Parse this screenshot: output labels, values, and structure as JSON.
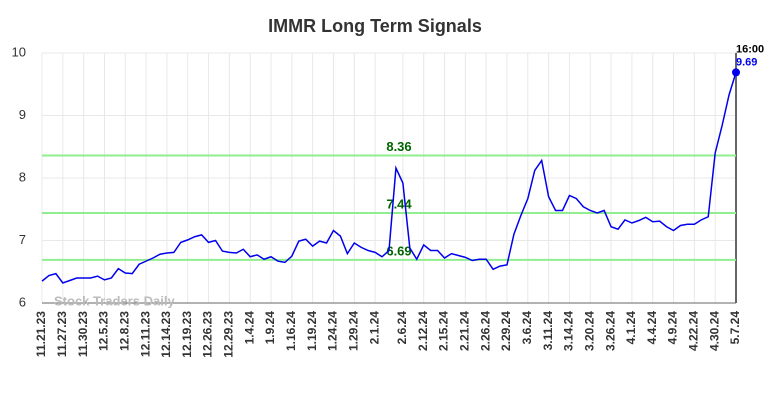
{
  "chart_data": {
    "type": "line",
    "title": "IMMR Long Term Signals",
    "watermark": "Stock Traders Daily",
    "annotation": "16:00",
    "xlim": [
      0,
      100
    ],
    "xticks": [
      {
        "value": 0,
        "label": "11.21.23"
      },
      {
        "value": 3,
        "label": "11.27.23"
      },
      {
        "value": 6,
        "label": "11.30.23"
      },
      {
        "value": 9,
        "label": "12.5.23"
      },
      {
        "value": 12,
        "label": "12.8.23"
      },
      {
        "value": 15,
        "label": "12.11.23"
      },
      {
        "value": 18,
        "label": "12.14.23"
      },
      {
        "value": 21,
        "label": "12.19.23"
      },
      {
        "value": 24,
        "label": "12.26.23"
      },
      {
        "value": 27,
        "label": "12.29.23"
      },
      {
        "value": 30,
        "label": "1.4.24"
      },
      {
        "value": 33,
        "label": "1.9.24"
      },
      {
        "value": 36,
        "label": "1.16.24"
      },
      {
        "value": 39,
        "label": "1.19.24"
      },
      {
        "value": 42,
        "label": "1.24.24"
      },
      {
        "value": 45,
        "label": "1.29.24"
      },
      {
        "value": 48,
        "label": "2.1.24"
      },
      {
        "value": 52,
        "label": "2.6.24"
      },
      {
        "value": 55,
        "label": "2.12.24"
      },
      {
        "value": 58,
        "label": "2.15.24"
      },
      {
        "value": 61,
        "label": "2.21.24"
      },
      {
        "value": 64,
        "label": "2.26.24"
      },
      {
        "value": 67,
        "label": "2.29.24"
      },
      {
        "value": 70,
        "label": "3.6.24"
      },
      {
        "value": 73,
        "label": "3.11.24"
      },
      {
        "value": 76,
        "label": "3.14.24"
      },
      {
        "value": 79,
        "label": "3.20.24"
      },
      {
        "value": 82,
        "label": "3.26.24"
      },
      {
        "value": 85,
        "label": "4.1.24"
      },
      {
        "value": 88,
        "label": "4.4.24"
      },
      {
        "value": 91,
        "label": "4.9.24"
      },
      {
        "value": 94,
        "label": "4.22.24"
      },
      {
        "value": 97,
        "label": "4.30.24"
      },
      {
        "value": 100,
        "label": "5.7.24"
      }
    ],
    "ylim": [
      6,
      10
    ],
    "yticks": [
      6,
      7,
      8,
      9,
      10
    ],
    "grid": true,
    "levels": [
      8.36,
      7.44,
      6.69
    ],
    "level_color": "#90ee90",
    "level_label_color": "#006400",
    "series": [
      {
        "color": "#0000ee",
        "values": [
          6.35,
          6.44,
          6.47,
          6.32,
          6.36,
          6.4,
          6.4,
          6.4,
          6.43,
          6.37,
          6.4,
          6.55,
          6.48,
          6.47,
          6.62,
          6.67,
          6.72,
          6.78,
          6.8,
          6.81,
          6.97,
          7.01,
          7.06,
          7.09,
          6.97,
          7.0,
          6.83,
          6.81,
          6.8,
          6.86,
          6.74,
          6.77,
          6.7,
          6.74,
          6.67,
          6.65,
          6.75,
          6.99,
          7.02,
          6.91,
          6.99,
          6.96,
          7.16,
          7.07,
          6.79,
          6.96,
          6.89,
          6.84,
          6.81,
          6.74,
          6.84,
          8.16,
          7.92,
          6.88,
          6.7,
          6.93,
          6.84,
          6.84,
          6.72,
          6.79,
          6.76,
          6.73,
          6.68,
          6.7,
          6.7,
          6.54,
          6.59,
          6.61,
          7.1,
          7.4,
          7.67,
          8.12,
          8.28,
          7.7,
          7.48,
          7.48,
          7.72,
          7.67,
          7.54,
          7.48,
          7.44,
          7.48,
          7.22,
          7.18,
          7.33,
          7.28,
          7.32,
          7.37,
          7.3,
          7.31,
          7.22,
          7.16,
          7.24,
          7.26,
          7.26,
          7.33,
          7.38,
          8.4,
          8.84,
          9.33,
          9.69
        ]
      }
    ]
  }
}
